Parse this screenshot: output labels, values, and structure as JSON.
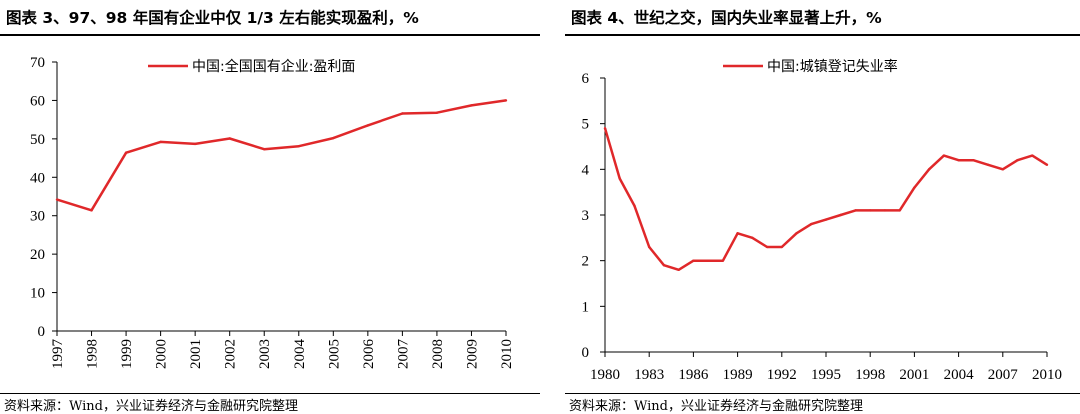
{
  "left": {
    "title": "图表 3、97、98 年国有企业中仅 1/3 左右能实现盈利，%",
    "source": "资料来源：Wind，兴业证券经济与金融研究院整理"
  },
  "right": {
    "title": "图表 4、世纪之交，国内失业率显著上升，%",
    "source": "资料来源：Wind，兴业证券经济与金融研究院整理"
  },
  "chart_data": [
    {
      "type": "line",
      "title": "",
      "xlabel": "",
      "ylabel": "",
      "x": [
        "1997",
        "1998",
        "1999",
        "2000",
        "2001",
        "2002",
        "2003",
        "2004",
        "2005",
        "2006",
        "2007",
        "2008",
        "2009",
        "2010"
      ],
      "series": [
        {
          "name": "中国:全国国有企业:盈利面",
          "color": "#e0282a",
          "values": [
            34.2,
            31.4,
            46.4,
            49.2,
            48.7,
            50.1,
            47.3,
            48.1,
            50.2,
            53.5,
            56.6,
            56.8,
            58.7,
            60.0
          ]
        }
      ],
      "ylim": [
        0,
        70
      ],
      "yticks": [
        "0",
        "10",
        "20",
        "30",
        "40",
        "50",
        "60",
        "70"
      ],
      "xtick_labels": [
        "1997",
        "1998",
        "1999",
        "2000",
        "2001",
        "2002",
        "2003",
        "2004",
        "2005",
        "2006",
        "2007",
        "2008",
        "2009",
        "2010"
      ],
      "grid": false,
      "legend_position": "top-center"
    },
    {
      "type": "line",
      "title": "",
      "xlabel": "",
      "ylabel": "",
      "x": [
        1980,
        1981,
        1982,
        1983,
        1984,
        1985,
        1986,
        1987,
        1988,
        1989,
        1990,
        1991,
        1992,
        1993,
        1994,
        1995,
        1996,
        1997,
        1998,
        1999,
        2000,
        2001,
        2002,
        2003,
        2004,
        2005,
        2006,
        2007,
        2008,
        2009,
        2010
      ],
      "series": [
        {
          "name": "中国:城镇登记失业率",
          "color": "#e0282a",
          "values": [
            4.9,
            3.8,
            3.2,
            2.3,
            1.9,
            1.8,
            2.0,
            2.0,
            2.0,
            2.6,
            2.5,
            2.3,
            2.3,
            2.6,
            2.8,
            2.9,
            3.0,
            3.1,
            3.1,
            3.1,
            3.1,
            3.6,
            4.0,
            4.3,
            4.2,
            4.2,
            4.1,
            4.0,
            4.2,
            4.3,
            4.1
          ]
        }
      ],
      "ylim": [
        0,
        6
      ],
      "yticks": [
        "0",
        "1",
        "2",
        "3",
        "4",
        "5",
        "6"
      ],
      "xtick_labels": [
        "1980",
        "1983",
        "1986",
        "1989",
        "1992",
        "1995",
        "1998",
        "2001",
        "2004",
        "2007",
        "2010"
      ],
      "grid": false,
      "legend_position": "top-center"
    }
  ]
}
